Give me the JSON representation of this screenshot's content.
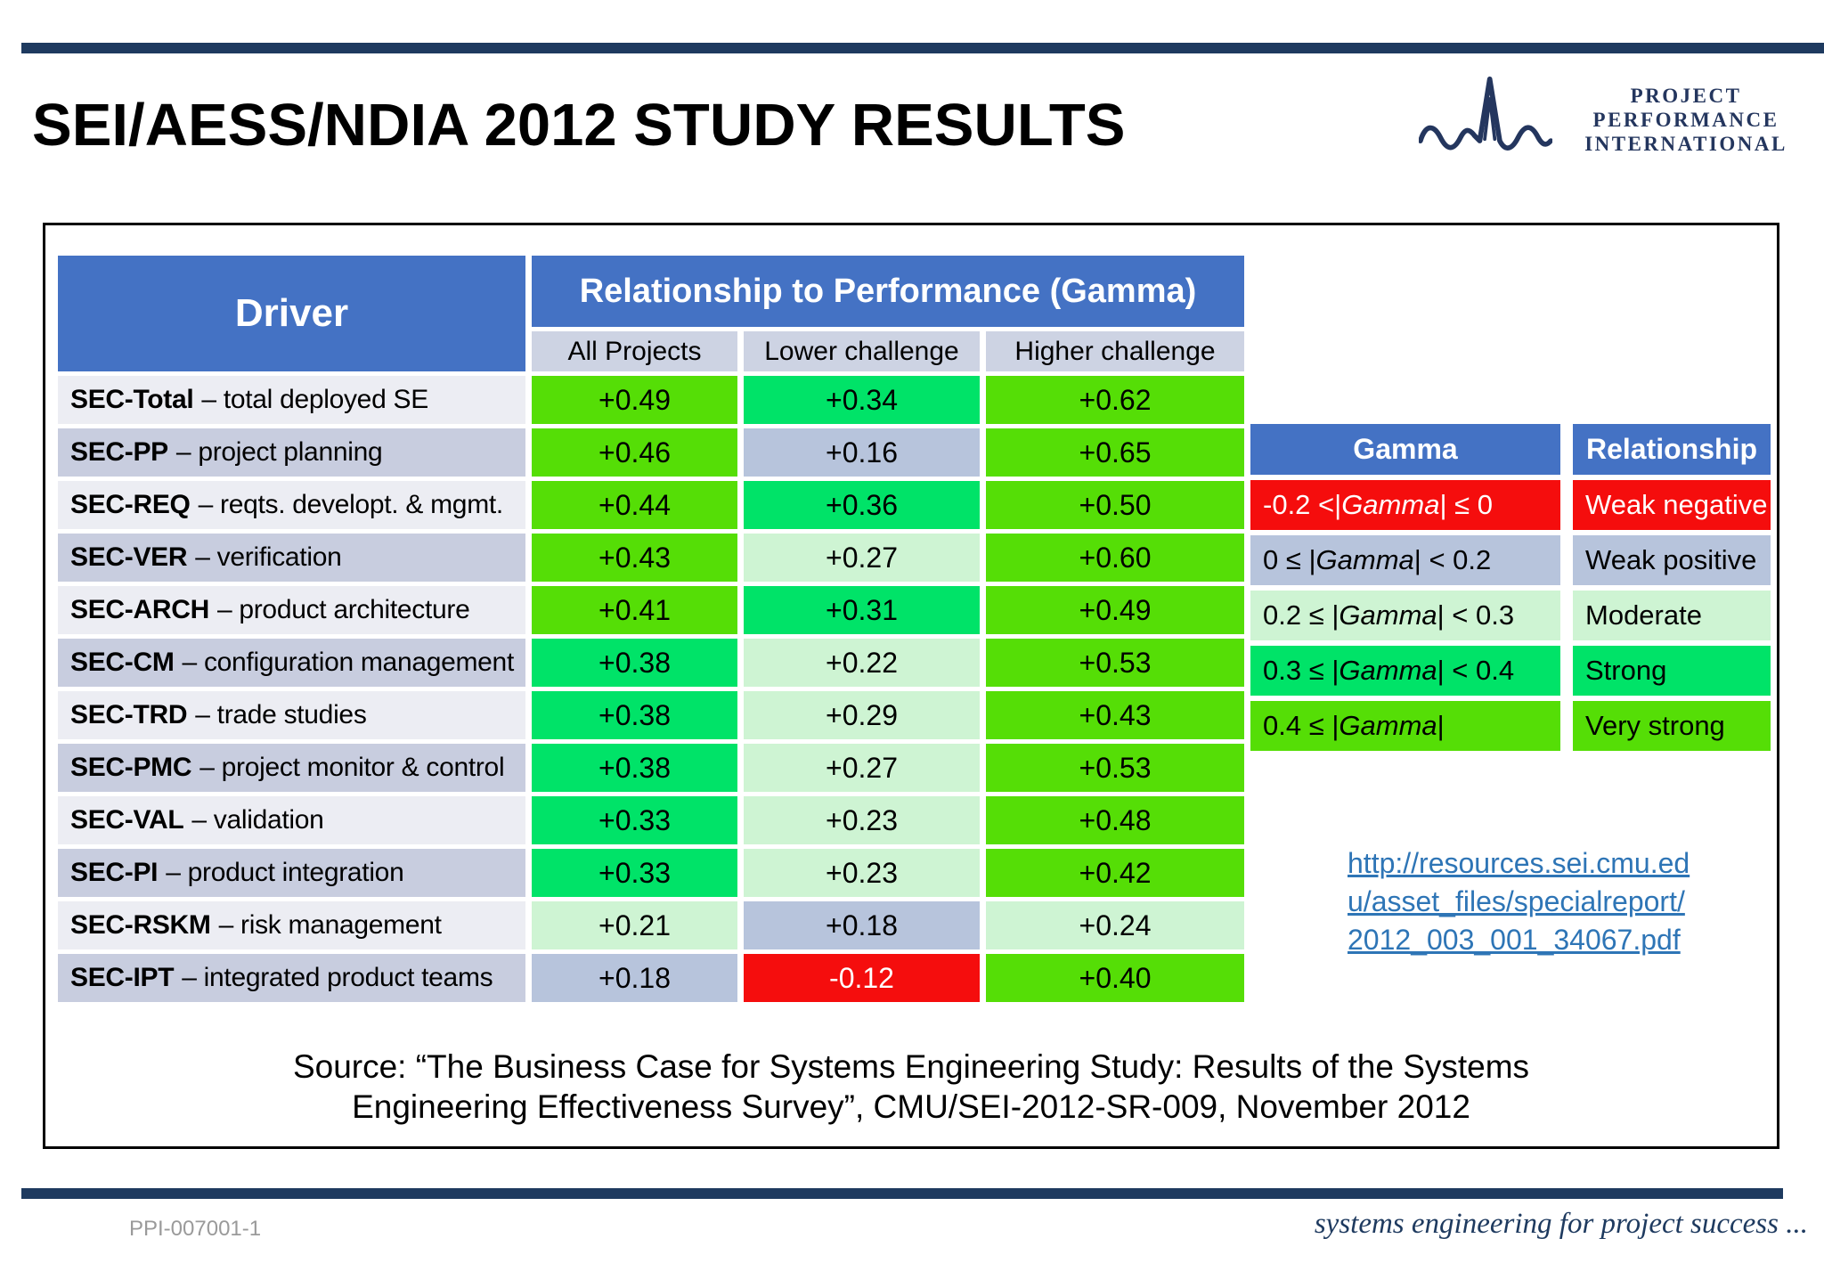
{
  "page": {
    "title": "SEI/AESS/NDIA 2012 STUDY RESULTS",
    "source_line1": "Source: “The Business Case for Systems Engineering Study: Results of the Systems",
    "source_line2": "Engineering Effectiveness Survey”, CMU/SEI-2012-SR-009, November 2012",
    "footer_left": "PPI-007001-1",
    "footer_right": "systems engineering for project success ..."
  },
  "logo": {
    "line1": "PROJECT PERFORMANCE",
    "line2": "INTERNATIONAL"
  },
  "main_table": {
    "driver_header": "Driver",
    "gamma_header": "Relationship to Performance (Gamma)",
    "columns": [
      "All Projects",
      "Lower challenge",
      "Higher challenge"
    ],
    "rows": [
      {
        "code": "SEC-Total",
        "desc": "– total deployed SE",
        "values": [
          "+0.49",
          "+0.34",
          "+0.62"
        ],
        "levels": [
          "very_strong",
          "strong",
          "very_strong"
        ]
      },
      {
        "code": "SEC-PP",
        "desc": "– project planning",
        "values": [
          "+0.46",
          "+0.16",
          "+0.65"
        ],
        "levels": [
          "very_strong",
          "weak_positive",
          "very_strong"
        ]
      },
      {
        "code": "SEC-REQ",
        "desc": "– reqts. developt. & mgmt.",
        "values": [
          "+0.44",
          "+0.36",
          "+0.50"
        ],
        "levels": [
          "very_strong",
          "strong",
          "very_strong"
        ]
      },
      {
        "code": "SEC-VER",
        "desc": "– verification",
        "values": [
          "+0.43",
          "+0.27",
          "+0.60"
        ],
        "levels": [
          "very_strong",
          "moderate",
          "very_strong"
        ]
      },
      {
        "code": "SEC-ARCH",
        "desc": "– product architecture",
        "values": [
          "+0.41",
          "+0.31",
          "+0.49"
        ],
        "levels": [
          "very_strong",
          "strong",
          "very_strong"
        ]
      },
      {
        "code": "SEC-CM",
        "desc": "– configuration management",
        "values": [
          "+0.38",
          "+0.22",
          "+0.53"
        ],
        "levels": [
          "strong",
          "moderate",
          "very_strong"
        ]
      },
      {
        "code": "SEC-TRD",
        "desc": "– trade studies",
        "values": [
          "+0.38",
          "+0.29",
          "+0.43"
        ],
        "levels": [
          "strong",
          "moderate",
          "very_strong"
        ]
      },
      {
        "code": "SEC-PMC",
        "desc": "– project monitor & control",
        "values": [
          "+0.38",
          "+0.27",
          "+0.53"
        ],
        "levels": [
          "strong",
          "moderate",
          "very_strong"
        ]
      },
      {
        "code": "SEC-VAL",
        "desc": "– validation",
        "values": [
          "+0.33",
          "+0.23",
          "+0.48"
        ],
        "levels": [
          "strong",
          "moderate",
          "very_strong"
        ]
      },
      {
        "code": "SEC-PI",
        "desc": "– product integration",
        "values": [
          "+0.33",
          "+0.23",
          "+0.42"
        ],
        "levels": [
          "strong",
          "moderate",
          "very_strong"
        ]
      },
      {
        "code": "SEC-RSKM",
        "desc": "– risk management",
        "values": [
          "+0.21",
          "+0.18",
          "+0.24"
        ],
        "levels": [
          "moderate",
          "weak_positive",
          "moderate"
        ]
      },
      {
        "code": "SEC-IPT",
        "desc": "– integrated product teams",
        "values": [
          "+0.18",
          "-0.12",
          "+0.40"
        ],
        "levels": [
          "weak_positive",
          "weak_negative",
          "very_strong"
        ]
      }
    ]
  },
  "legend": {
    "headers": [
      "Gamma",
      "Relationship"
    ],
    "rows": [
      {
        "range": "-0.2 <| Gamma | ≤ 0",
        "label": "Weak negative",
        "level": "weak_negative"
      },
      {
        "range": "0 ≤ | Gamma | < 0.2",
        "label": "Weak positive",
        "level": "weak_positive"
      },
      {
        "range": "0.2 ≤ | Gamma | < 0.3",
        "label": "Moderate",
        "level": "moderate"
      },
      {
        "range": "0.3 ≤ | Gamma | < 0.4",
        "label": "Strong",
        "level": "strong"
      },
      {
        "range": "0.4 ≤ | Gamma |",
        "label": "Very strong",
        "level": "very_strong"
      }
    ]
  },
  "link": {
    "lines": [
      "http://resources.sei.cmu.ed",
      "u/asset_files/specialreport/",
      "2012_003_001_34067.pdf"
    ],
    "url": "http://resources.sei.cmu.edu/asset_files/specialreport/2012_003_001_34067.pdf"
  },
  "colors": {
    "very_strong": "#55DE06",
    "strong": "#00E368",
    "moderate": "#CEF4D3",
    "weak_positive": "#B7C4DC",
    "weak_negative": "#F50D0D",
    "header_blue": "#4472C4",
    "subheader": "#CDD3E3",
    "row_light": "#ECEDF3",
    "row_dark": "#C8CDDF",
    "navy": "#1E3A5F",
    "link_blue": "#2E75B6",
    "footer_gray": "#9A9A9A",
    "logo_navy": "#24365E"
  },
  "text_colors": {
    "weak_negative": "#FFFFFF"
  }
}
